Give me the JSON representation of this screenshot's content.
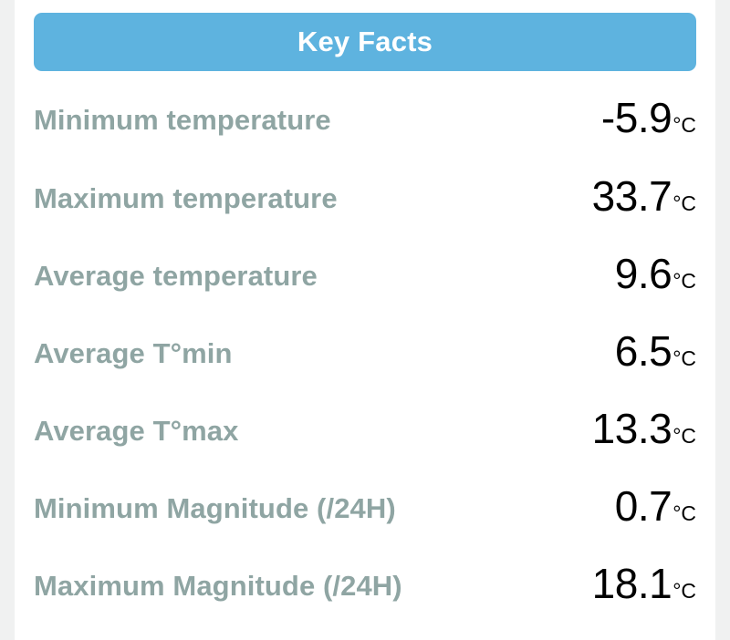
{
  "header": {
    "title": "Key Facts"
  },
  "facts": [
    {
      "label": "Minimum temperature",
      "value": "-5.9",
      "unit": "°C"
    },
    {
      "label": "Maximum temperature",
      "value": "33.7",
      "unit": "°C"
    },
    {
      "label": "Average temperature",
      "value": "9.6",
      "unit": "°C"
    },
    {
      "label": "Average T°min",
      "value": "6.5",
      "unit": "°C"
    },
    {
      "label": "Average T°max",
      "value": "13.3",
      "unit": "°C"
    },
    {
      "label": "Minimum Magnitude (/24H)",
      "value": "0.7",
      "unit": "°C"
    },
    {
      "label": "Maximum Magnitude (/24H)",
      "value": "18.1",
      "unit": "°C"
    }
  ],
  "colors": {
    "header_bg": "#5eb3df",
    "label": "#8fa5a3",
    "value": "#000000",
    "page_bg": "#f0f1f1"
  }
}
